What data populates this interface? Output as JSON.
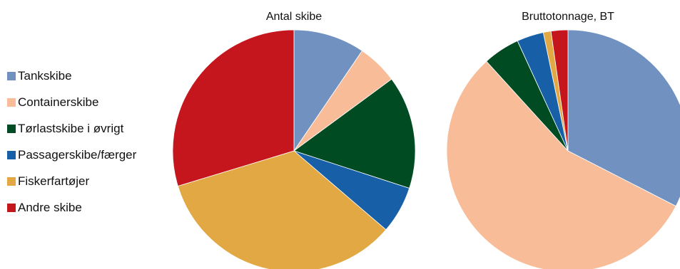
{
  "legend": [
    {
      "label": "Tankskibe",
      "color": "#7192c1"
    },
    {
      "label": "Containerskibe",
      "color": "#f8bd98"
    },
    {
      "label": "Tørlastskibe i øvrigt",
      "color": "#004b21"
    },
    {
      "label": "Passagerskibe/færger",
      "color": "#1760a8"
    },
    {
      "label": "Fiskerfartøjer",
      "color": "#e2a843"
    },
    {
      "label": "Andre skibe",
      "color": "#c4161c"
    }
  ],
  "chart_data": [
    {
      "type": "pie",
      "title": "Antal skibe",
      "categories": [
        "Tankskibe",
        "Containerskibe",
        "Tørlastskibe i øvrigt",
        "Passagerskibe/færger",
        "Fiskerfartøjer",
        "Andre skibe"
      ],
      "values": [
        9.5,
        5.4,
        15.1,
        6.3,
        34.0,
        29.7
      ],
      "colors": [
        "#7192c1",
        "#f8bd98",
        "#004b21",
        "#1760a8",
        "#e2a843",
        "#c4161c"
      ]
    },
    {
      "type": "pie",
      "title": "Bruttotonnage, BT",
      "categories": [
        "Tankskibe",
        "Containerskibe",
        "Tørlastskibe i øvrigt",
        "Passagerskibe/færger",
        "Fiskerfartøjer",
        "Andre skibe"
      ],
      "values": [
        31.9,
        54.6,
        4.8,
        3.5,
        1.0,
        2.2
      ],
      "colors": [
        "#7192c1",
        "#f8bd98",
        "#004b21",
        "#1760a8",
        "#e2a843",
        "#c4161c"
      ]
    }
  ]
}
